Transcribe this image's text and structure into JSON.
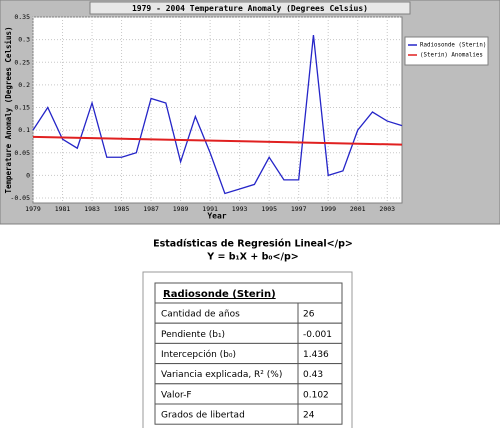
{
  "chart_data": {
    "type": "line",
    "title": "1979 - 2004 Temperature Anomaly (Degrees Celsius)",
    "x_label": "Year",
    "y_label": "Temperature Anomaly (Degrees Celsius)",
    "x": [
      1979,
      1980,
      1981,
      1982,
      1983,
      1984,
      1985,
      1986,
      1987,
      1988,
      1989,
      1990,
      1991,
      1992,
      1993,
      1994,
      1995,
      1996,
      1997,
      1998,
      1999,
      2000,
      2001,
      2002,
      2003,
      2004
    ],
    "series": [
      {
        "name": "Radiosonde (Sterin)",
        "color": "#2525c8",
        "values": [
          0.1,
          0.15,
          0.08,
          0.06,
          0.16,
          0.04,
          0.04,
          0.05,
          0.17,
          0.16,
          0.03,
          0.13,
          0.05,
          -0.04,
          -0.03,
          -0.02,
          0.04,
          -0.01,
          -0.01,
          0.31,
          0.0,
          0.01,
          0.1,
          0.14,
          0.12,
          0.11
        ]
      },
      {
        "name": "(Sterin) Anomalies",
        "color": "#e02020",
        "x": [
          1979,
          2004
        ],
        "values": [
          0.085,
          0.068
        ]
      }
    ],
    "xlim": [
      1979,
      2004
    ],
    "ylim": [
      -0.05,
      0.35
    ],
    "xticks": [
      1979,
      1981,
      1983,
      1985,
      1987,
      1989,
      1991,
      1993,
      1995,
      1997,
      1999,
      2001,
      2003
    ],
    "yticks": [
      -0.05,
      0,
      0.05,
      0.1,
      0.15,
      0.2,
      0.25,
      0.3,
      0.35
    ],
    "grid": true,
    "legend": "right"
  },
  "stats": {
    "title": "Estadísticas de Regresión Lineal</p>",
    "formula": "Y = b₁X + b₀</p>",
    "heading": "Radiosonde (Sterin)",
    "rows": [
      [
        "Cantidad de años",
        26
      ],
      [
        "Pendiente (b₁)",
        -0.001
      ],
      [
        "Intercepción (b₀)",
        1.436
      ],
      [
        "Variancia explicada, R² (%)",
        0.43
      ],
      [
        "Valor-F",
        0.102
      ],
      [
        "Grados de libertad",
        24
      ]
    ]
  }
}
